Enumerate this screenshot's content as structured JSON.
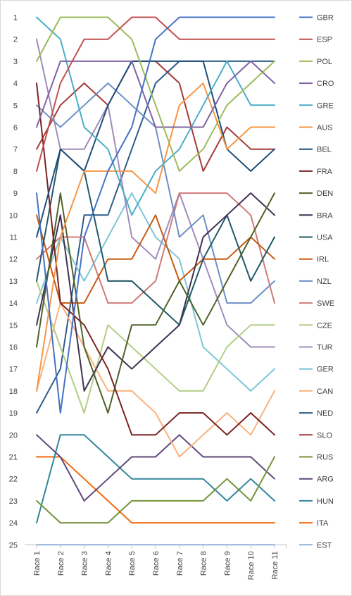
{
  "chart_data": {
    "type": "line",
    "title": "",
    "xlabel": "",
    "ylabel": "",
    "y_axis_inverted": true,
    "ylim": [
      1,
      25
    ],
    "grid": false,
    "legend_position": "right",
    "categories": [
      "Race 1",
      "Race 2",
      "Race 3",
      "Race 4",
      "Race 5",
      "Race 6",
      "Race 7",
      "Race 8",
      "Race 9",
      "Race 10",
      "Race 11"
    ],
    "y_ticks": [
      "1",
      "2",
      "3",
      "4",
      "5",
      "6",
      "7",
      "8",
      "9",
      "10",
      "11",
      "12",
      "13",
      "14",
      "15",
      "16",
      "17",
      "18",
      "19",
      "20",
      "21",
      "22",
      "23",
      "24",
      "25"
    ],
    "series": [
      {
        "name": "GBR",
        "color": "#4472C4",
        "values": [
          9,
          19,
          11,
          8,
          6,
          2,
          1,
          1,
          1,
          1,
          1
        ]
      },
      {
        "name": "ESP",
        "color": "#C0504D",
        "values": [
          8,
          4,
          2,
          2,
          1,
          1,
          2,
          2,
          2,
          2,
          2
        ]
      },
      {
        "name": "POL",
        "color": "#9BBB59",
        "values": [
          3,
          1,
          1,
          1,
          2,
          5,
          8,
          7,
          5,
          4,
          3
        ]
      },
      {
        "name": "CRO",
        "color": "#8064A2",
        "values": [
          6,
          3,
          3,
          3,
          3,
          6,
          6,
          6,
          4,
          3,
          4
        ]
      },
      {
        "name": "GRE",
        "color": "#4BACC6",
        "values": [
          1,
          2,
          6,
          7,
          10,
          8,
          7,
          5,
          3,
          5,
          5
        ]
      },
      {
        "name": "AUS",
        "color": "#F79646",
        "values": [
          18,
          11,
          8,
          8,
          8,
          9,
          5,
          4,
          7,
          6,
          6
        ]
      },
      {
        "name": "BEL",
        "color": "#1F4E79",
        "values": [
          11,
          7,
          8,
          5,
          3,
          3,
          3,
          3,
          7,
          8,
          7
        ]
      },
      {
        "name": "FRA",
        "color": "#7B2222",
        "values": [
          4,
          14,
          15,
          17,
          20,
          20,
          19,
          19,
          20,
          19,
          20
        ]
      },
      {
        "name": "DEN",
        "color": "#4F6228",
        "values": [
          16,
          9,
          16,
          19,
          15,
          15,
          13,
          15,
          13,
          11,
          9
        ]
      },
      {
        "name": "BRA",
        "color": "#3F3151",
        "values": [
          15,
          10,
          18,
          16,
          17,
          16,
          15,
          11,
          10,
          9,
          10
        ]
      },
      {
        "name": "USA",
        "color": "#215867",
        "values": [
          13,
          7,
          8,
          13,
          13,
          14,
          15,
          12,
          10,
          13,
          11
        ]
      },
      {
        "name": "IRL",
        "color": "#C55A11",
        "values": [
          10,
          14,
          14,
          12,
          12,
          10,
          13,
          12,
          12,
          11,
          12
        ]
      },
      {
        "name": "NZL",
        "color": "#6E8FC6",
        "values": [
          5,
          6,
          5,
          4,
          5,
          6,
          11,
          10,
          14,
          14,
          13
        ]
      },
      {
        "name": "SWE",
        "color": "#D07A77",
        "values": [
          12,
          11,
          11,
          14,
          14,
          13,
          9,
          9,
          9,
          10,
          14
        ]
      },
      {
        "name": "CZE",
        "color": "#B3CE85",
        "values": [
          13,
          16,
          19,
          15,
          16,
          17,
          18,
          18,
          16,
          15,
          15
        ]
      },
      {
        "name": "TUR",
        "color": "#A08BBB",
        "values": [
          2,
          7,
          7,
          5,
          11,
          12,
          9,
          12,
          15,
          16,
          16
        ]
      },
      {
        "name": "GER",
        "color": "#7CC7D9",
        "values": [
          14,
          11,
          13,
          11,
          9,
          11,
          12,
          16,
          17,
          18,
          17
        ]
      },
      {
        "name": "CAN",
        "color": "#F9B27D",
        "values": [
          18,
          14,
          16,
          18,
          18,
          19,
          21,
          20,
          19,
          20,
          18
        ]
      },
      {
        "name": "NED",
        "color": "#2E5C8A",
        "values": [
          19,
          17,
          10,
          10,
          7,
          4,
          3,
          3,
          3,
          3,
          3
        ]
      },
      {
        "name": "SLO",
        "color": "#A33B38",
        "values": [
          7,
          5,
          4,
          5,
          3,
          3,
          4,
          8,
          6,
          7,
          7
        ]
      },
      {
        "name": "RUS",
        "color": "#77933C",
        "values": [
          23,
          24,
          24,
          24,
          23,
          23,
          23,
          23,
          22,
          23,
          21
        ]
      },
      {
        "name": "ARG",
        "color": "#5F497A",
        "values": [
          20,
          21,
          23,
          22,
          21,
          21,
          20,
          21,
          21,
          21,
          22
        ]
      },
      {
        "name": "HUN",
        "color": "#31869B",
        "values": [
          24,
          20,
          20,
          21,
          22,
          22,
          22,
          22,
          23,
          22,
          23
        ]
      },
      {
        "name": "ITA",
        "color": "#F26B0F",
        "values": [
          21,
          21,
          22,
          23,
          24,
          24,
          24,
          24,
          24,
          24,
          24
        ]
      },
      {
        "name": "EST",
        "color": "#95B3D7",
        "values": [
          25,
          25,
          25,
          25,
          25,
          25,
          25,
          25,
          25,
          25,
          25
        ]
      }
    ]
  }
}
